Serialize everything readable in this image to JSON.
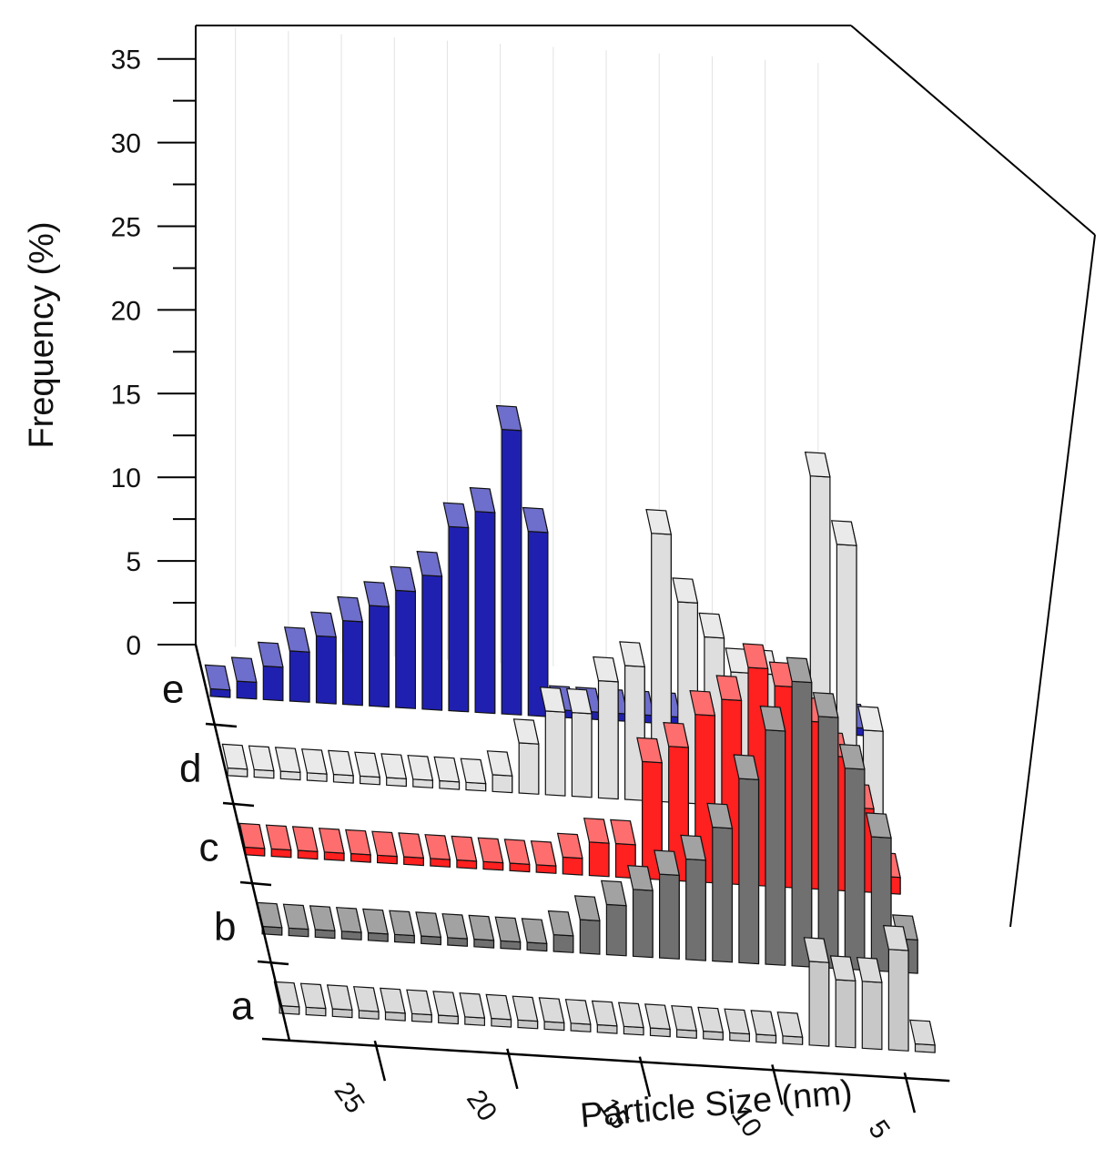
{
  "chart_data": {
    "type": "bar",
    "subtype": "3d-bar",
    "title": "",
    "xlabel": "Particle Size (nm)",
    "ylabel": "Frequency (%)",
    "ylim": [
      0,
      37
    ],
    "y_ticks": [
      0,
      5,
      10,
      15,
      20,
      25,
      30,
      35
    ],
    "x_ticks": [
      25,
      20,
      15,
      10,
      5
    ],
    "series_labels_front_to_back": [
      "a",
      "b",
      "c",
      "d",
      "e"
    ],
    "x": [
      28,
      27,
      26,
      25,
      24,
      23,
      22,
      21,
      20,
      19,
      18,
      17,
      16,
      15,
      14,
      13,
      12,
      11,
      10,
      9,
      8,
      7,
      6,
      5,
      4
    ],
    "series": [
      {
        "name": "a",
        "color": "#c8c8c8",
        "values": [
          0,
          0,
          0,
          0,
          0,
          0,
          0,
          0,
          0,
          0,
          0,
          0,
          0,
          0,
          0,
          0,
          0,
          0,
          0,
          0,
          5,
          4,
          4,
          6,
          0
        ]
      },
      {
        "name": "b",
        "color": "#707070",
        "values": [
          0,
          0,
          0,
          0,
          0,
          0,
          0,
          0,
          0,
          0,
          0,
          1,
          2,
          3,
          4,
          5,
          6,
          8,
          11,
          14,
          17,
          15,
          12,
          8,
          2
        ]
      },
      {
        "name": "c",
        "color": "#ff2020",
        "values": [
          0,
          0,
          0,
          0,
          0,
          0,
          0,
          0,
          0,
          0,
          0,
          0,
          1,
          2,
          2,
          7,
          8,
          10,
          11,
          13,
          12,
          10,
          8,
          5,
          1
        ]
      },
      {
        "name": "d",
        "color": "#dedede",
        "values": [
          0,
          0,
          0,
          0,
          0,
          0,
          0,
          0,
          0,
          0,
          1,
          3,
          5,
          5,
          7,
          8,
          16,
          12,
          10,
          8,
          8,
          6,
          20,
          16,
          5
        ]
      },
      {
        "name": "e",
        "color": "#2020b0",
        "values": [
          0,
          1,
          2,
          3,
          4,
          5,
          6,
          7,
          8,
          11,
          12,
          17,
          11,
          0,
          0,
          0,
          0,
          0,
          0,
          0,
          0,
          0,
          0,
          0,
          0
        ]
      }
    ]
  }
}
